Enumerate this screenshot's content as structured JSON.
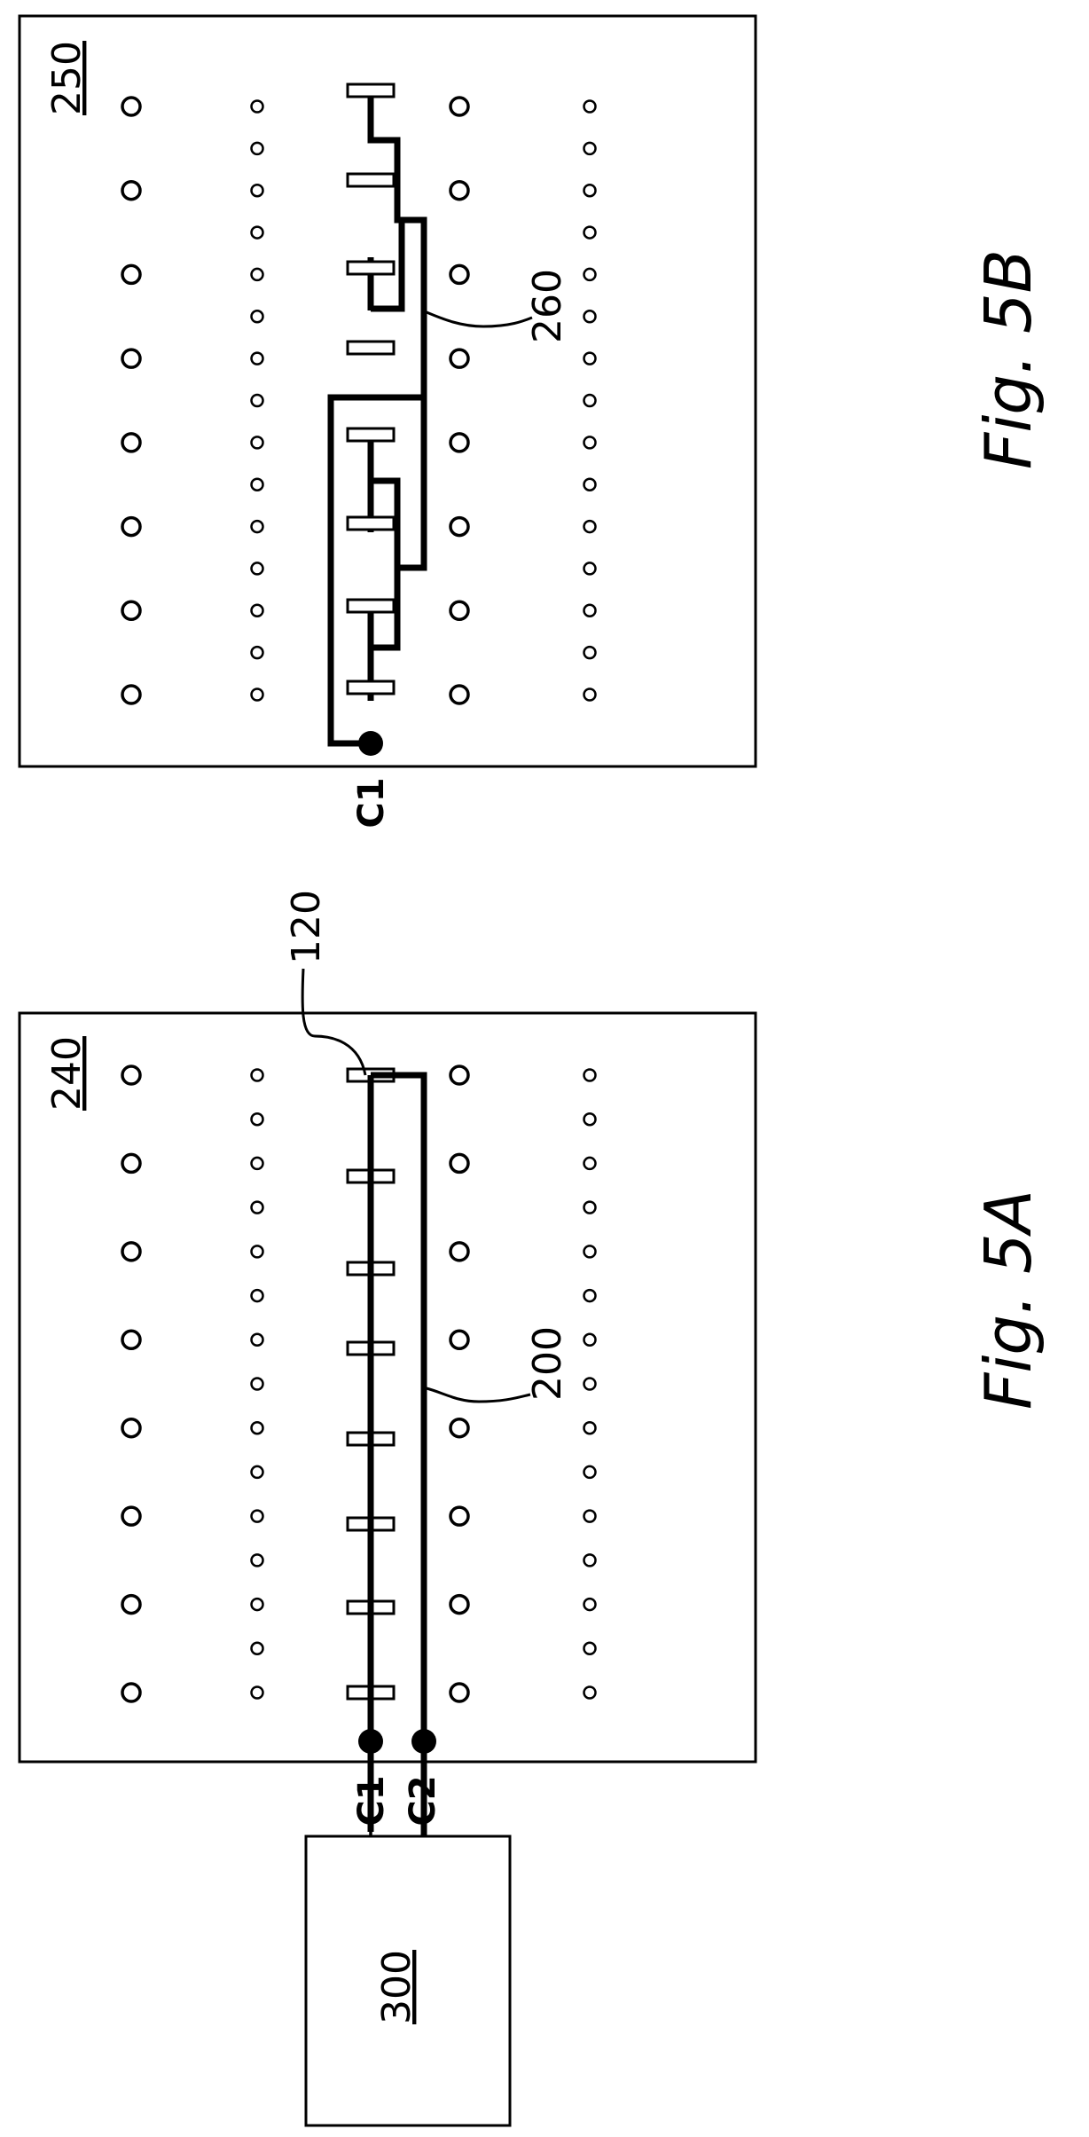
{
  "figures": [
    {
      "caption": "Fig. 5A",
      "panel_label": "240",
      "controller_label": "300",
      "contact_labels": [
        "C1",
        "C2"
      ],
      "lead_labels": [
        "120",
        "200"
      ]
    },
    {
      "caption": "Fig. 5B",
      "panel_label": "250",
      "contact_labels": [
        "C1"
      ],
      "lead_labels": [
        "260"
      ]
    }
  ],
  "colors": {
    "ink": "#000000",
    "paper": "#ffffff"
  }
}
